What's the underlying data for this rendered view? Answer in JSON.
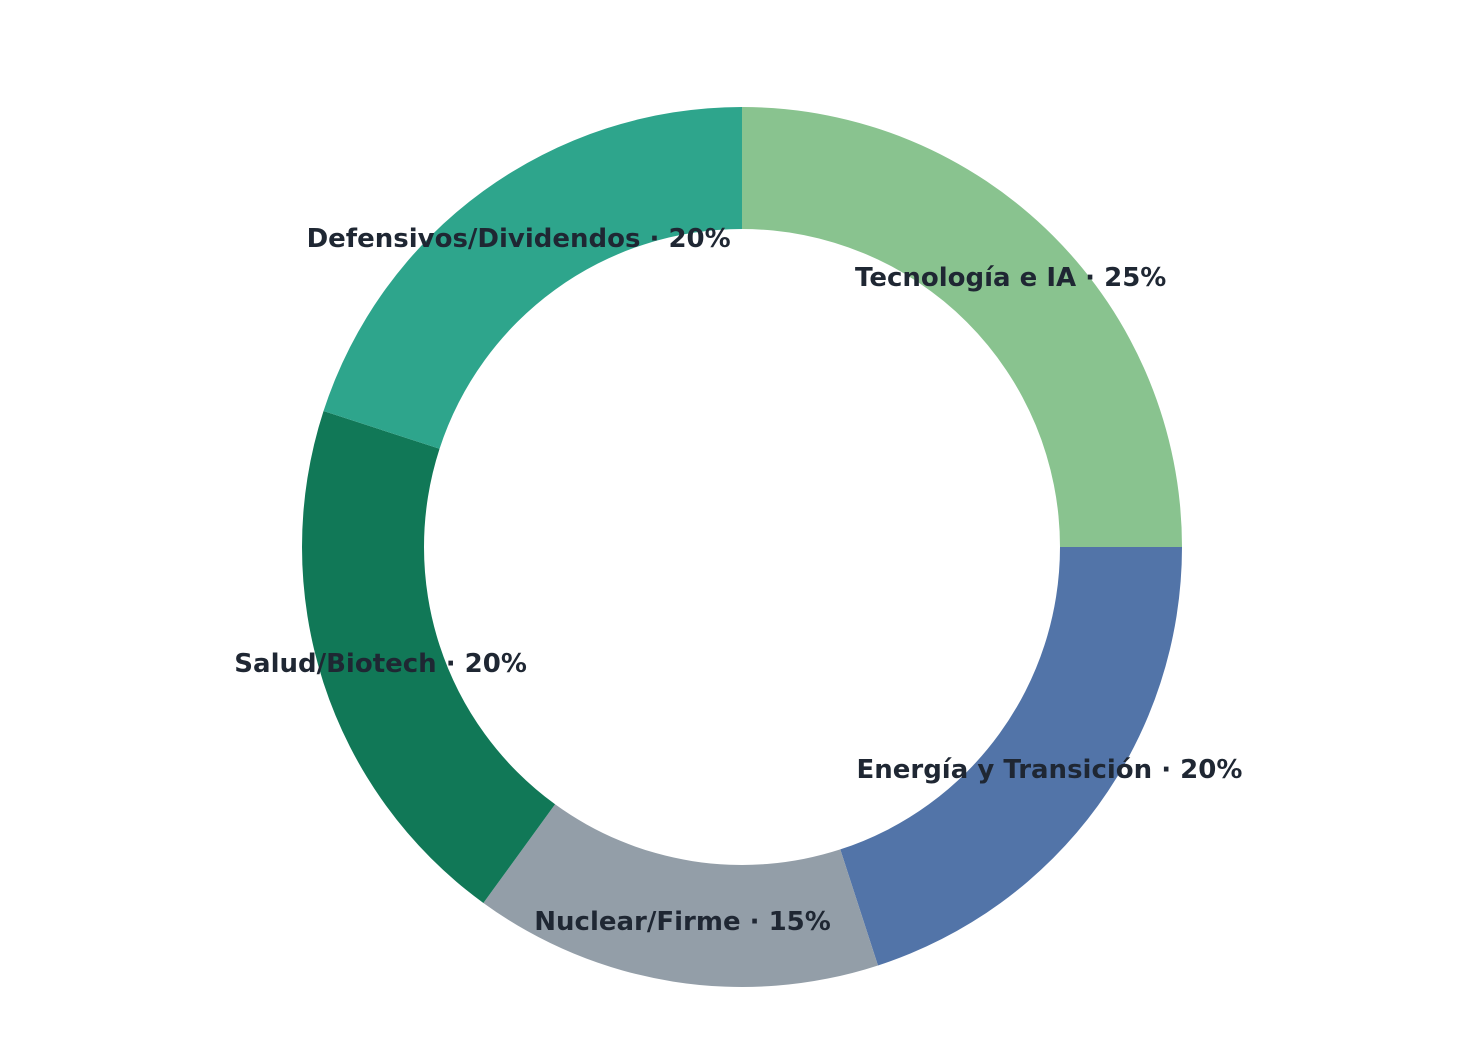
{
  "chart_data": {
    "type": "pie",
    "donut": true,
    "start": "12 o'clock, clockwise",
    "slices": [
      {
        "label": "Tecnología e IA · 25%",
        "category": "Tecnología e IA",
        "value": 25,
        "color": "#89c38f"
      },
      {
        "label": "Energía y Transición · 20%",
        "category": "Energía y Transición",
        "value": 20,
        "color": "#5274a8"
      },
      {
        "label": "Nuclear/Firme · 15%",
        "category": "Nuclear/Firme",
        "value": 15,
        "color": "#939ea8"
      },
      {
        "label": "Salud/Biotech · 20%",
        "category": "Salud/Biotech",
        "value": 20,
        "color": "#117857"
      },
      {
        "label": "Defensivos/Dividendos · 20%",
        "category": "Defensivos/Dividendos",
        "value": 20,
        "color": "#2ea58c"
      }
    ]
  }
}
